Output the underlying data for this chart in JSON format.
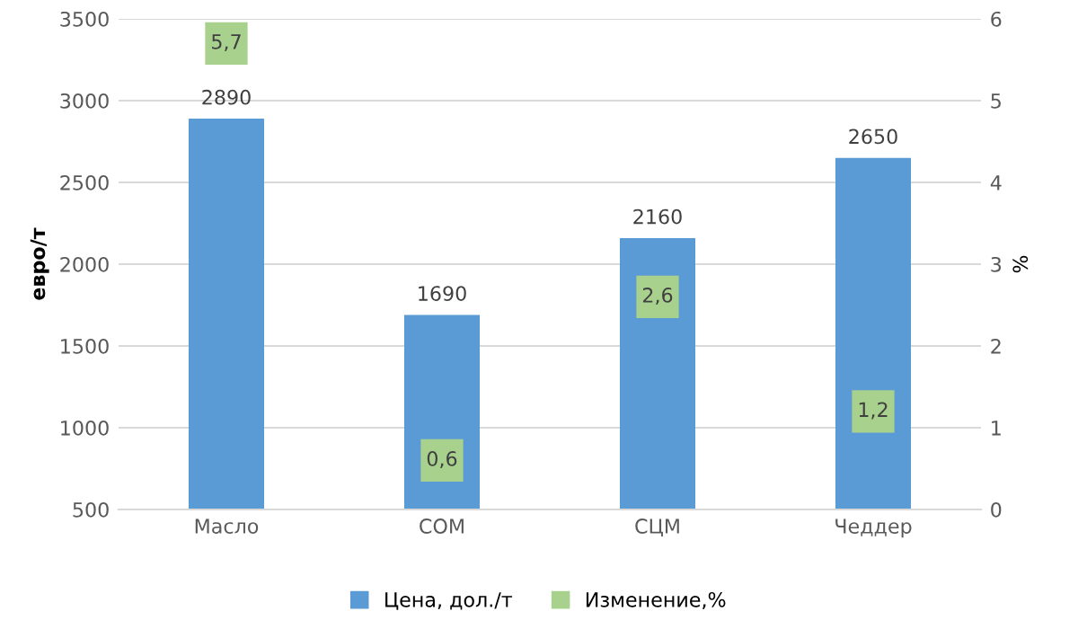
{
  "chart_data": {
    "type": "bar",
    "categories": [
      "Масло",
      "СОМ",
      "СЦМ",
      "Чеддер"
    ],
    "ylabel": "евро/т",
    "y2label": "%",
    "ylim": [
      500,
      3500
    ],
    "yticks": [
      500,
      1000,
      1500,
      2000,
      2500,
      3000,
      3500
    ],
    "y2lim": [
      0,
      6
    ],
    "y2ticks": [
      0,
      1,
      2,
      3,
      4,
      5,
      6
    ],
    "series": [
      {
        "name": "Цена, дол./т",
        "color": "#5b9bd5",
        "values": [
          2890,
          1690,
          2160,
          2650
        ]
      },
      {
        "name": "Изменение,%",
        "type": "scatter",
        "axis": "y2",
        "color": "#a9d18e",
        "values": [
          5.7,
          0.6,
          2.6,
          1.2
        ],
        "value_labels": [
          "5,7",
          "0,6",
          "2,6",
          "1,2"
        ]
      }
    ],
    "data_labels": true,
    "grid": "y",
    "legend": "bottom",
    "marker": "square"
  }
}
